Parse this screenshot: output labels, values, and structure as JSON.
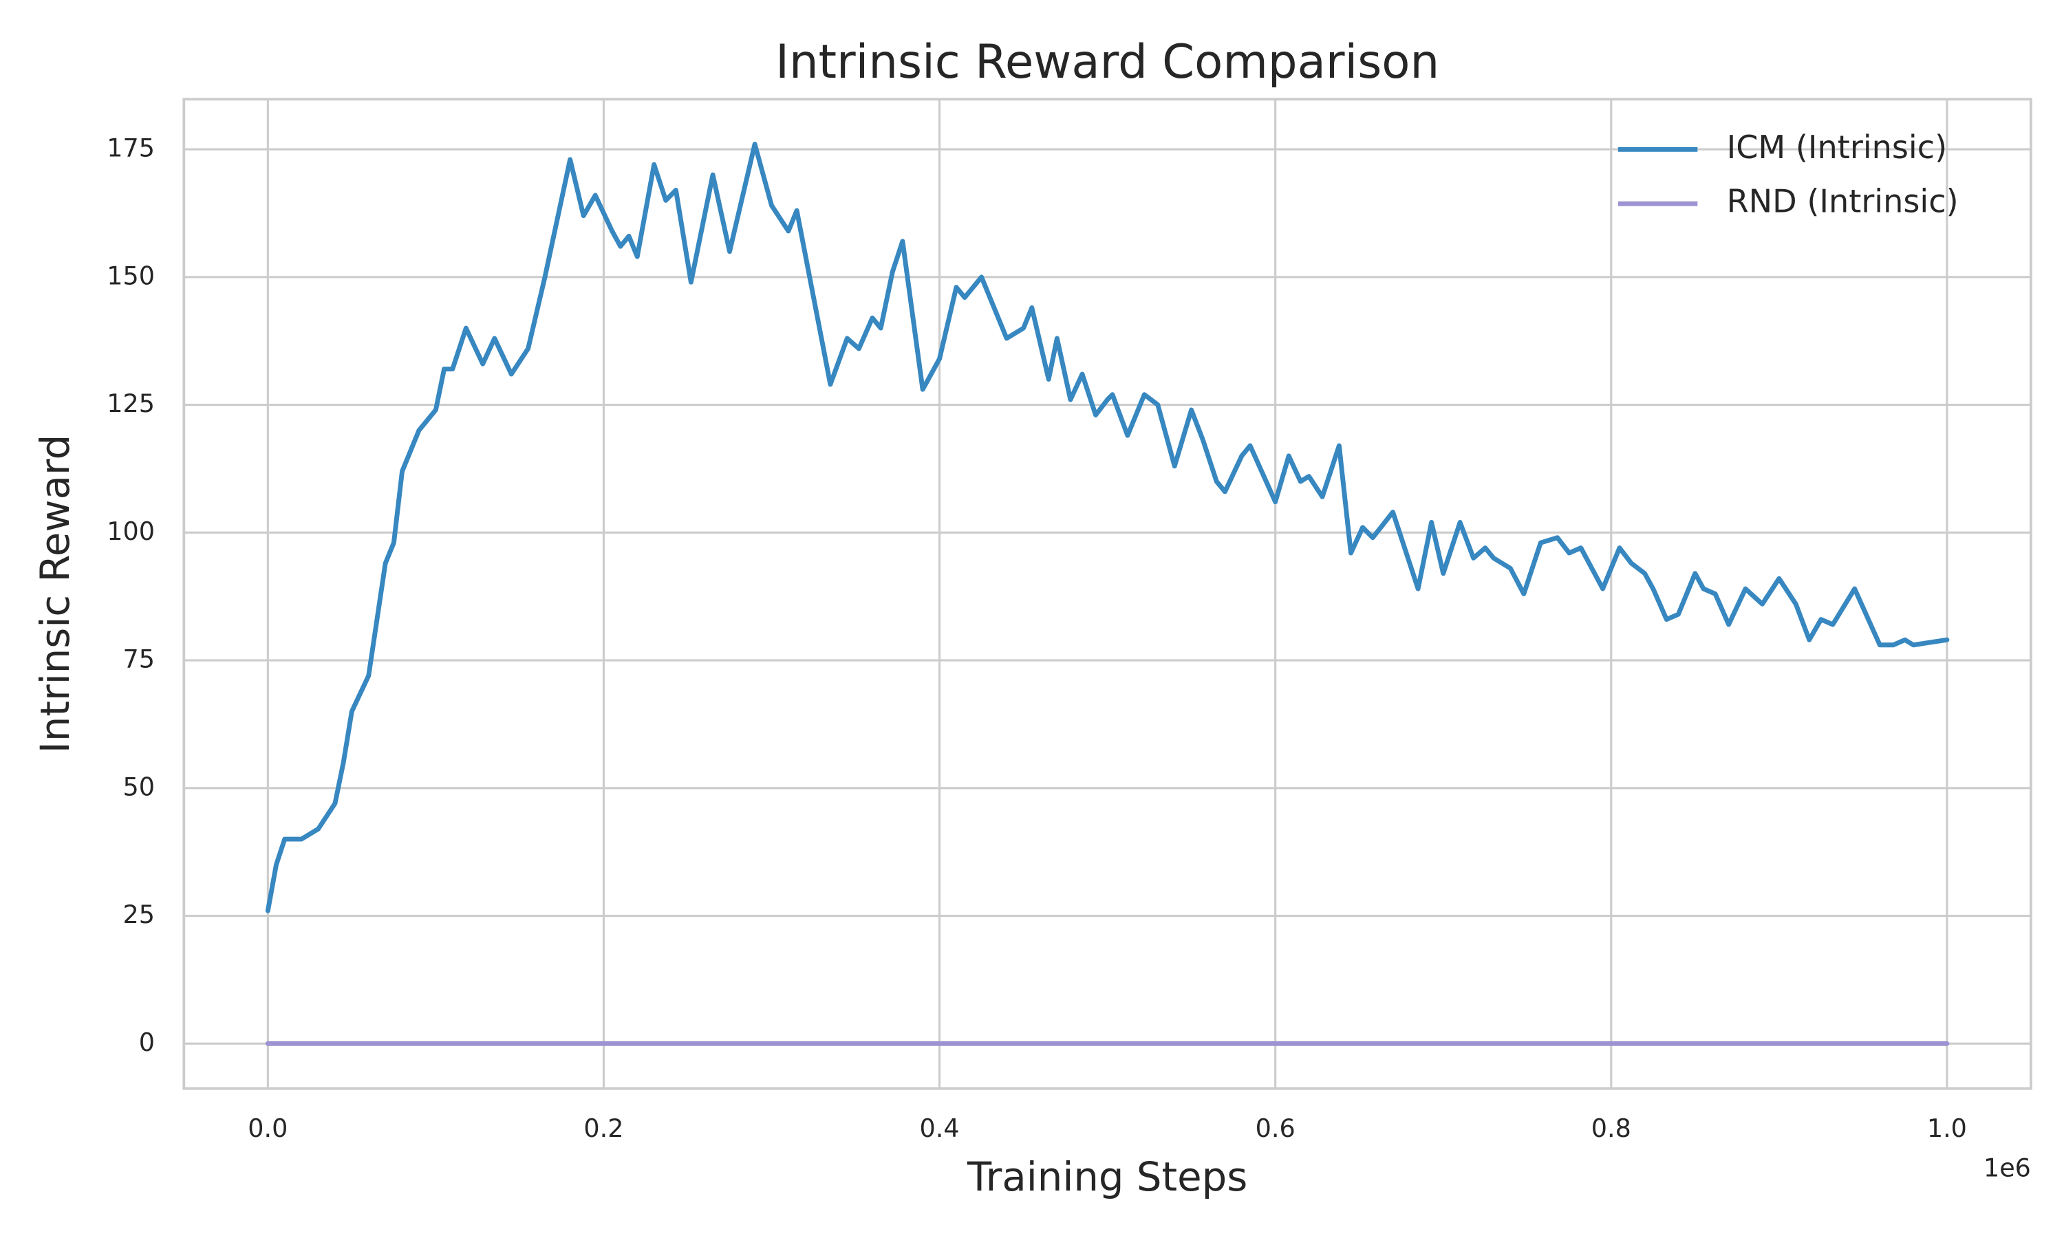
{
  "chart_data": {
    "type": "line",
    "title": "Intrinsic Reward Comparison",
    "x_label": "Training Steps",
    "y_label": "Intrinsic Reward",
    "x_offset_label": "1e6",
    "xlim": [
      -50000,
      1050000
    ],
    "ylim": [
      -8.8,
      184.8
    ],
    "xticks": [
      {
        "value": 0,
        "label": "0.0"
      },
      {
        "value": 200000,
        "label": "0.2"
      },
      {
        "value": 400000,
        "label": "0.4"
      },
      {
        "value": 600000,
        "label": "0.6"
      },
      {
        "value": 800000,
        "label": "0.8"
      },
      {
        "value": 1000000,
        "label": "1.0"
      }
    ],
    "yticks": [
      0,
      25,
      50,
      75,
      100,
      125,
      150,
      175
    ],
    "grid": true,
    "legend": "upper right",
    "series": [
      {
        "name": "ICM (Intrinsic)",
        "color": "#3787c0",
        "x": [
          0,
          5000,
          10000,
          20000,
          30000,
          40000,
          45000,
          50000,
          60000,
          70000,
          75000,
          80000,
          90000,
          100000,
          105000,
          110000,
          118000,
          128000,
          135000,
          145000,
          155000,
          165000,
          180000,
          188000,
          195000,
          205000,
          210000,
          215000,
          220000,
          230000,
          237000,
          243000,
          252000,
          265000,
          275000,
          290000,
          300000,
          310000,
          315000,
          325000,
          335000,
          345000,
          352000,
          360000,
          365000,
          372000,
          378000,
          390000,
          400000,
          410000,
          415000,
          425000,
          440000,
          445000,
          450000,
          455000,
          465000,
          470000,
          478000,
          485000,
          493000,
          500000,
          503000,
          512000,
          522000,
          530000,
          540000,
          550000,
          557000,
          565000,
          570000,
          580000,
          585000,
          600000,
          608000,
          615000,
          620000,
          628000,
          638000,
          645000,
          652000,
          658000,
          670000,
          685000,
          693000,
          700000,
          710000,
          718000,
          725000,
          730000,
          740000,
          748000,
          758000,
          768000,
          775000,
          782000,
          795000,
          805000,
          812000,
          820000,
          825000,
          833000,
          840000,
          850000,
          855000,
          862000,
          870000,
          880000,
          890000,
          900000,
          910000,
          918000,
          925000,
          932000,
          945000,
          960000,
          968000,
          975000,
          980000,
          1000000
        ],
        "values": [
          26,
          35,
          40,
          40,
          42,
          47,
          55,
          65,
          72,
          94,
          98,
          112,
          120,
          124,
          132,
          132,
          140,
          133,
          138,
          131,
          136,
          150,
          173,
          162,
          166,
          159,
          156,
          158,
          154,
          172,
          165,
          167,
          149,
          170,
          155,
          176,
          164,
          159,
          163,
          146,
          129,
          138,
          136,
          142,
          140,
          151,
          157,
          128,
          134,
          148,
          146,
          150,
          138,
          139,
          140,
          144,
          130,
          138,
          126,
          131,
          123,
          126,
          127,
          119,
          127,
          125,
          113,
          124,
          118,
          110,
          108,
          115,
          117,
          106,
          115,
          110,
          111,
          107,
          117,
          96,
          101,
          99,
          104,
          89,
          102,
          92,
          102,
          95,
          97,
          95,
          93,
          88,
          98,
          99,
          96,
          97,
          89,
          97,
          94,
          92,
          89,
          83,
          84,
          92,
          89,
          88,
          82,
          89,
          86,
          91,
          86,
          79,
          83,
          82,
          89,
          78,
          78,
          79,
          78,
          79
        ]
      },
      {
        "name": "RND (Intrinsic)",
        "color": "#9d92d2",
        "x": [
          0,
          1000000
        ],
        "values": [
          0,
          0
        ]
      }
    ]
  }
}
